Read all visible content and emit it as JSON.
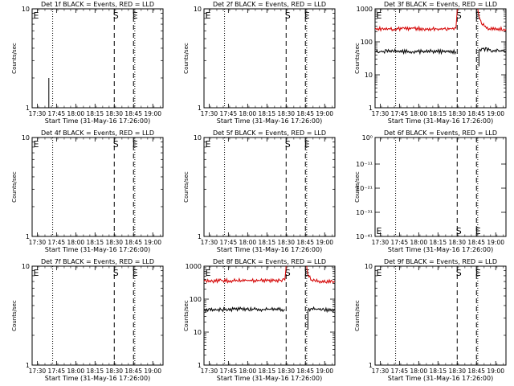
{
  "colors": {
    "events": "#000000",
    "lld": "#d40000",
    "background": "#ffffff"
  },
  "chart_data": [
    {
      "type": "line",
      "title": "Det 1f BLACK = Events, RED = LLD",
      "xlabel": "Start Time (31-May-16 17:26:00)",
      "ylabel": "Counts/sec",
      "x_ticks": [
        "17:30",
        "17:45",
        "18:00",
        "18:15",
        "18:30",
        "18:45",
        "19:00"
      ],
      "y_scale": "log",
      "y_ticks": [
        "1",
        "10"
      ],
      "ylim": [
        1,
        10
      ],
      "markers": [
        {
          "label": "E",
          "time": "17:30",
          "style": "none"
        },
        {
          "label": "",
          "time": "17:42",
          "style": "dotted"
        },
        {
          "label": "S",
          "time": "18:30",
          "style": "dashed"
        },
        {
          "label": "E",
          "time": "18:45",
          "style": "dashed"
        },
        {
          "label": "",
          "time": "18:46",
          "style": "dotted"
        }
      ],
      "series": [
        {
          "color": "black",
          "points": [
            [
              "17:39",
              1
            ],
            [
              "17:39",
              2
            ]
          ]
        }
      ]
    },
    {
      "type": "line",
      "title": "Det 2f BLACK = Events, RED = LLD",
      "xlabel": "Start Time (31-May-16 17:26:00)",
      "ylabel": "Counts/sec",
      "x_ticks": [
        "17:30",
        "17:45",
        "18:00",
        "18:15",
        "18:30",
        "18:45",
        "19:00"
      ],
      "y_scale": "log",
      "y_ticks": [
        "1",
        "10"
      ],
      "ylim": [
        1,
        10
      ],
      "markers": [
        {
          "label": "E",
          "time": "17:30",
          "style": "none"
        },
        {
          "label": "",
          "time": "17:42",
          "style": "dotted"
        },
        {
          "label": "S",
          "time": "18:30",
          "style": "dashed"
        },
        {
          "label": "E",
          "time": "18:45",
          "style": "dashed"
        },
        {
          "label": "",
          "time": "18:46",
          "style": "dotted"
        }
      ],
      "series": []
    },
    {
      "type": "line",
      "title": "Det 3f BLACK = Events, RED = LLD",
      "xlabel": "Start Time (31-May-16 17:26:00)",
      "ylabel": "Counts/sec",
      "x_ticks": [
        "17:30",
        "17:45",
        "18:00",
        "18:15",
        "18:30",
        "18:45",
        "19:00"
      ],
      "y_scale": "log",
      "y_ticks": [
        "1",
        "10",
        "100",
        "1000"
      ],
      "ylim": [
        1,
        1000
      ],
      "markers": [
        {
          "label": "E",
          "time": "17:30",
          "style": "none"
        },
        {
          "label": "",
          "time": "17:42",
          "style": "dotted"
        },
        {
          "label": "S",
          "time": "18:30",
          "style": "dashed"
        },
        {
          "label": "E",
          "time": "18:45",
          "style": "dashed"
        },
        {
          "label": "",
          "time": "18:46",
          "style": "dotted"
        }
      ],
      "series": [
        {
          "color": "red",
          "points": [
            [
              "17:26",
              250
            ],
            [
              "17:40",
              240
            ],
            [
              "17:55",
              255
            ],
            [
              "18:10",
              245
            ],
            [
              "18:25",
              250
            ],
            [
              "18:29",
              260
            ],
            [
              "18:30",
              900
            ],
            [
              "18:30",
              1000
            ]
          ]
        },
        {
          "color": "red",
          "points": [
            [
              "18:46",
              1000
            ],
            [
              "18:47",
              600
            ],
            [
              "18:49",
              350
            ],
            [
              "18:55",
              250
            ],
            [
              "19:08",
              240
            ]
          ]
        },
        {
          "color": "black",
          "points": [
            [
              "17:26",
              50
            ],
            [
              "17:40",
              52
            ],
            [
              "17:55",
              50
            ],
            [
              "18:10",
              51
            ],
            [
              "18:29",
              50
            ]
          ]
        },
        {
          "color": "black",
          "points": [
            [
              "18:47",
              18
            ],
            [
              "18:47",
              55
            ],
            [
              "18:50",
              62
            ],
            [
              "18:58",
              55
            ],
            [
              "19:08",
              52
            ]
          ]
        }
      ]
    },
    {
      "type": "line",
      "title": "Det 4f BLACK = Events, RED = LLD",
      "xlabel": "Start Time (31-May-16 17:26:00)",
      "ylabel": "Counts/sec",
      "x_ticks": [
        "17:30",
        "17:45",
        "18:00",
        "18:15",
        "18:30",
        "18:45",
        "19:00"
      ],
      "y_scale": "log",
      "y_ticks": [
        "1",
        "10"
      ],
      "ylim": [
        1,
        10
      ],
      "markers": [
        {
          "label": "E",
          "time": "17:30",
          "style": "none"
        },
        {
          "label": "",
          "time": "17:42",
          "style": "dotted"
        },
        {
          "label": "S",
          "time": "18:30",
          "style": "dashed"
        },
        {
          "label": "E",
          "time": "18:45",
          "style": "dashed"
        },
        {
          "label": "",
          "time": "18:46",
          "style": "dotted"
        }
      ],
      "series": []
    },
    {
      "type": "line",
      "title": "Det 5f BLACK = Events, RED = LLD",
      "xlabel": "Start Time (31-May-16 17:26:00)",
      "ylabel": "Counts/sec",
      "x_ticks": [
        "17:30",
        "17:45",
        "18:00",
        "18:15",
        "18:30",
        "18:45",
        "19:00"
      ],
      "y_scale": "log",
      "y_ticks": [
        "1",
        "10"
      ],
      "ylim": [
        1,
        10
      ],
      "markers": [
        {
          "label": "E",
          "time": "17:30",
          "style": "none"
        },
        {
          "label": "",
          "time": "17:42",
          "style": "dotted"
        },
        {
          "label": "S",
          "time": "18:30",
          "style": "dashed"
        },
        {
          "label": "E",
          "time": "18:45",
          "style": "dashed"
        },
        {
          "label": "",
          "time": "18:46",
          "style": "dotted"
        }
      ],
      "series": []
    },
    {
      "type": "line",
      "title": "Det 6f BLACK = Events, RED = LLD",
      "xlabel": "Start Time (31-May-16 17:26:00)",
      "ylabel": "Counts/sec",
      "x_ticks": [
        "17:30",
        "17:45",
        "18:00",
        "18:15",
        "18:30",
        "18:45",
        "19:00"
      ],
      "y_scale": "log",
      "y_ticks": [
        "10⁰",
        "10⁻¹¹",
        "10⁻²¹",
        "10⁻³¹",
        "10⁻⁴¹"
      ],
      "ylim": [
        1e-41,
        1
      ],
      "markers": [
        {
          "label": "E",
          "time": "17:30",
          "style": "none"
        },
        {
          "label": "",
          "time": "17:42",
          "style": "dotted"
        },
        {
          "label": "S",
          "time": "18:30",
          "style": "dashed"
        },
        {
          "label": "E",
          "time": "18:45",
          "style": "dashed"
        },
        {
          "label": "",
          "time": "18:46",
          "style": "dotted"
        }
      ],
      "series": []
    },
    {
      "type": "line",
      "title": "Det 7f BLACK = Events, RED = LLD",
      "xlabel": "Start Time (31-May-16 17:26:00)",
      "ylabel": "Counts/sec",
      "x_ticks": [
        "17:30",
        "17:45",
        "18:00",
        "18:15",
        "18:30",
        "18:45",
        "19:00"
      ],
      "y_scale": "log",
      "y_ticks": [
        "1",
        "10"
      ],
      "ylim": [
        1,
        10
      ],
      "markers": [
        {
          "label": "E",
          "time": "17:30",
          "style": "none"
        },
        {
          "label": "",
          "time": "17:42",
          "style": "dotted"
        },
        {
          "label": "S",
          "time": "18:30",
          "style": "dashed"
        },
        {
          "label": "E",
          "time": "18:45",
          "style": "dashed"
        },
        {
          "label": "",
          "time": "18:46",
          "style": "dotted"
        }
      ],
      "series": []
    },
    {
      "type": "line",
      "title": "Det 8f BLACK = Events, RED = LLD",
      "xlabel": "Start Time (31-May-16 17:26:00)",
      "ylabel": "Counts/sec",
      "x_ticks": [
        "17:30",
        "17:45",
        "18:00",
        "18:15",
        "18:30",
        "18:45",
        "19:00"
      ],
      "y_scale": "log",
      "y_ticks": [
        "1",
        "10",
        "100",
        "1000"
      ],
      "ylim": [
        1,
        1000
      ],
      "markers": [
        {
          "label": "E",
          "time": "17:30",
          "style": "none"
        },
        {
          "label": "",
          "time": "17:42",
          "style": "dotted"
        },
        {
          "label": "S",
          "time": "18:30",
          "style": "dashed"
        },
        {
          "label": "E",
          "time": "18:45",
          "style": "dashed"
        },
        {
          "label": "",
          "time": "18:46",
          "style": "dotted"
        }
      ],
      "series": [
        {
          "color": "red",
          "points": [
            [
              "17:26",
              350
            ],
            [
              "17:40",
              360
            ],
            [
              "17:55",
              370
            ],
            [
              "18:10",
              365
            ],
            [
              "18:25",
              370
            ],
            [
              "18:29",
              380
            ],
            [
              "18:30",
              1000
            ]
          ]
        },
        {
          "color": "red",
          "points": [
            [
              "18:46",
              1000
            ],
            [
              "18:47",
              550
            ],
            [
              "18:50",
              380
            ],
            [
              "18:57",
              350
            ],
            [
              "19:08",
              340
            ]
          ]
        },
        {
          "color": "black",
          "points": [
            [
              "17:26",
              45
            ],
            [
              "17:40",
              48
            ],
            [
              "17:55",
              50
            ],
            [
              "18:10",
              49
            ],
            [
              "18:29",
              48
            ]
          ]
        },
        {
          "color": "black",
          "points": [
            [
              "18:47",
              12
            ],
            [
              "18:47",
              45
            ],
            [
              "18:50",
              52
            ],
            [
              "18:58",
              48
            ],
            [
              "19:08",
              46
            ]
          ]
        }
      ]
    },
    {
      "type": "line",
      "title": "Det 9f BLACK = Events, RED = LLD",
      "xlabel": "Start Time (31-May-16 17:26:00)",
      "ylabel": "Counts/sec",
      "x_ticks": [
        "17:30",
        "17:45",
        "18:00",
        "18:15",
        "18:30",
        "18:45",
        "19:00"
      ],
      "y_scale": "log",
      "y_ticks": [
        "1",
        "10"
      ],
      "ylim": [
        1,
        10
      ],
      "markers": [
        {
          "label": "E",
          "time": "17:30",
          "style": "none"
        },
        {
          "label": "",
          "time": "17:42",
          "style": "dotted"
        },
        {
          "label": "S",
          "time": "18:30",
          "style": "dashed"
        },
        {
          "label": "E",
          "time": "18:45",
          "style": "dashed"
        },
        {
          "label": "",
          "time": "18:46",
          "style": "dotted"
        }
      ],
      "series": []
    }
  ]
}
